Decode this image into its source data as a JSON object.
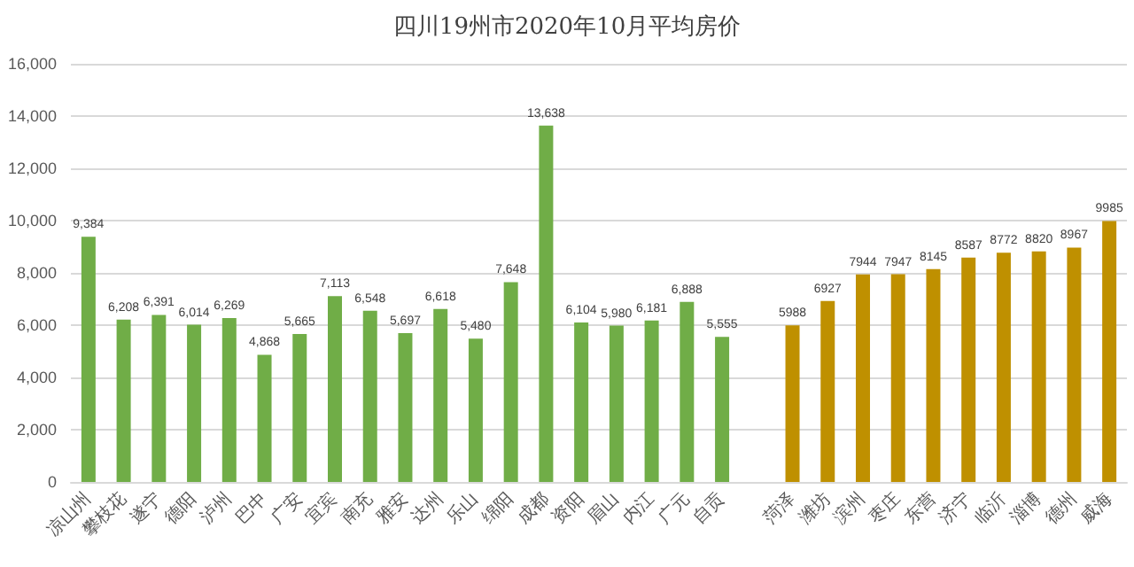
{
  "chart_data": {
    "type": "bar",
    "title": "四川19州市2020年10月平均房价",
    "categories": [
      "凉山州",
      "攀枝花",
      "遂宁",
      "德阳",
      "泸州",
      "巴中",
      "广安",
      "宜宾",
      "南充",
      "雅安",
      "达州",
      "乐山",
      "绵阳",
      "成都",
      "资阳",
      "眉山",
      "内江",
      "广元",
      "自贡",
      null,
      "菏泽",
      "潍坊",
      "滨州",
      "枣庄",
      "东营",
      "济宁",
      "临沂",
      "淄博",
      "德州",
      "威海"
    ],
    "series": [
      {
        "color": "#70ad47",
        "values": [
          9384,
          6208,
          6391,
          6014,
          6269,
          4868,
          5665,
          7113,
          6548,
          5697,
          6618,
          5480,
          7648,
          13638,
          6104,
          5980,
          6181,
          6888,
          5555,
          null,
          null,
          null,
          null,
          null,
          null,
          null,
          null,
          null,
          null,
          null
        ],
        "value_labels": [
          "9,384",
          "6,208",
          "6,391",
          "6,014",
          "6,269",
          "4,868",
          "5,665",
          "7,113",
          "6,548",
          "5,697",
          "6,618",
          "5,480",
          "7,648",
          "13,638",
          "6,104",
          "5,980",
          "6,181",
          "6,888",
          "5,555",
          null,
          null,
          null,
          null,
          null,
          null,
          null,
          null,
          null,
          null,
          null
        ]
      },
      {
        "color": "#bf9000",
        "values": [
          null,
          null,
          null,
          null,
          null,
          null,
          null,
          null,
          null,
          null,
          null,
          null,
          null,
          null,
          null,
          null,
          null,
          null,
          null,
          null,
          5988,
          6927,
          7944,
          7947,
          8145,
          8587,
          8772,
          8820,
          8967,
          9985
        ],
        "value_labels": [
          null,
          null,
          null,
          null,
          null,
          null,
          null,
          null,
          null,
          null,
          null,
          null,
          null,
          null,
          null,
          null,
          null,
          null,
          null,
          null,
          "5988",
          "6927",
          "7944",
          "7947",
          "8145",
          "8587",
          "8772",
          "8820",
          "8967",
          "9985"
        ]
      }
    ],
    "ylim": [
      0,
      16000
    ],
    "yticks": [
      0,
      {
        "value": 2000,
        "label": "2,000"
      },
      {
        "value": 4000,
        "label": "4,000"
      },
      {
        "value": 6000,
        "label": "6,000"
      },
      {
        "value": 8000,
        "label": "8,000"
      },
      {
        "value": 10000,
        "label": "10,000"
      },
      {
        "value": 12000,
        "label": "12,000"
      },
      {
        "value": 14000,
        "label": "14,000"
      },
      {
        "value": 16000,
        "label": "16,000"
      }
    ],
    "grid": "y"
  }
}
